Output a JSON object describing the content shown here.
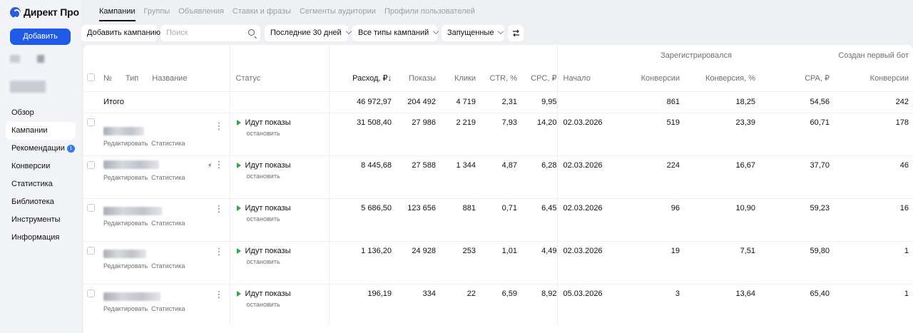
{
  "app": {
    "logo_text": "Директ Про",
    "add_label": "Добавить",
    "accent": "#1f5be6"
  },
  "sidebar": {
    "items": [
      {
        "label": "Обзор",
        "active": false
      },
      {
        "label": "Кампании",
        "active": true
      },
      {
        "label": "Рекомендации",
        "active": false,
        "badge": "1"
      },
      {
        "label": "Конверсии",
        "active": false
      },
      {
        "label": "Статистика",
        "active": false
      },
      {
        "label": "Библиотека",
        "active": false
      },
      {
        "label": "Инструменты",
        "active": false
      },
      {
        "label": "Информация",
        "active": false
      }
    ]
  },
  "tabs": [
    "Кампании",
    "Группы",
    "Объявления",
    "Ставки и фразы",
    "Сегменты аудитории",
    "Профили пользователей"
  ],
  "toolbar": {
    "add_campaign": "Добавить кампанию",
    "search_placeholder": "Поиск",
    "period": "Последние 30 дней",
    "types": "Все типы кампаний",
    "state": "Запущенные"
  },
  "table": {
    "groups": {
      "registered": "Зарегистрировался",
      "first_bot": "Создан первый бот"
    },
    "headers": {
      "num": "№",
      "type": "Тип",
      "name": "Название",
      "status": "Статус",
      "spend": "Расход, ₽↓",
      "impressions": "Показы",
      "clicks": "Клики",
      "ctr": "CTR, %",
      "cpc": "CPC, ₽",
      "start": "Начало",
      "conversions": "Конверсии",
      "conv_rate": "Конверсия, %",
      "cpa": "CPA, ₽",
      "bot_conversions": "Конверсии"
    },
    "total": {
      "label": "Итого",
      "spend": "46 972,97",
      "impressions": "204 492",
      "clicks": "4 719",
      "ctr": "2,31",
      "cpc": "9,95",
      "conversions": "861",
      "conv_rate": "18,25",
      "cpa": "54,56",
      "bot_conversions": "242"
    },
    "row_links": {
      "edit": "Редактировать",
      "stats": "Статистика"
    },
    "rows": [
      {
        "status": "Идут показы",
        "action": "остановить",
        "spend": "31 508,40",
        "impressions": "27 986",
        "clicks": "2 219",
        "ctr": "7,93",
        "cpc": "14,20",
        "start": "02.03.2026",
        "conversions": "519",
        "conv_rate": "23,39",
        "cpa": "60,71",
        "bot_conversions": "178"
      },
      {
        "status": "Идут показы",
        "action": "остановить",
        "spend": "8 445,68",
        "impressions": "27 588",
        "clicks": "1 344",
        "ctr": "4,87",
        "cpc": "6,28",
        "start": "02.03.2026",
        "conversions": "224",
        "conv_rate": "16,67",
        "cpa": "37,70",
        "bot_conversions": "46"
      },
      {
        "status": "Идут показы",
        "action": "остановить",
        "spend": "5 686,50",
        "impressions": "123 656",
        "clicks": "881",
        "ctr": "0,71",
        "cpc": "6,45",
        "start": "02.03.2026",
        "conversions": "96",
        "conv_rate": "10,90",
        "cpa": "59,23",
        "bot_conversions": "16"
      },
      {
        "status": "Идут показы",
        "action": "остановить",
        "spend": "1 136,20",
        "impressions": "24 928",
        "clicks": "253",
        "ctr": "1,01",
        "cpc": "4,49",
        "start": "02.03.2026",
        "conversions": "19",
        "conv_rate": "7,51",
        "cpa": "59,80",
        "bot_conversions": "1"
      },
      {
        "status": "Идут показы",
        "action": "остановить",
        "spend": "196,19",
        "impressions": "334",
        "clicks": "22",
        "ctr": "6,59",
        "cpc": "8,92",
        "start": "05.03.2026",
        "conversions": "3",
        "conv_rate": "13,64",
        "cpa": "65,40",
        "bot_conversions": "1"
      }
    ]
  }
}
